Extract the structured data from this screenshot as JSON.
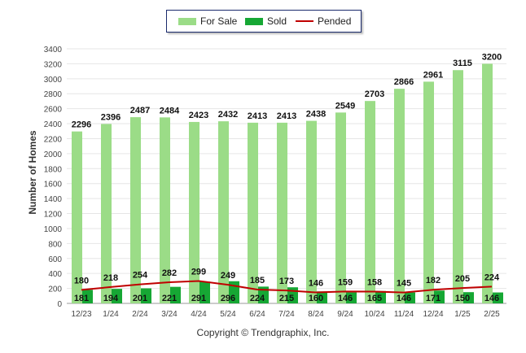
{
  "chart_data": {
    "type": "bar",
    "categories": [
      "12/23",
      "1/24",
      "2/24",
      "3/24",
      "4/24",
      "5/24",
      "6/24",
      "7/24",
      "8/24",
      "9/24",
      "10/24",
      "11/24",
      "12/24",
      "1/25",
      "2/25"
    ],
    "series": [
      {
        "name": "For Sale",
        "type": "bar",
        "color": "#9bdc87",
        "values": [
          2296,
          2396,
          2487,
          2484,
          2423,
          2432,
          2413,
          2413,
          2438,
          2549,
          2703,
          2866,
          2961,
          3115,
          3200
        ]
      },
      {
        "name": "Sold",
        "type": "bar",
        "color": "#16a734",
        "values": [
          181,
          194,
          201,
          221,
          291,
          296,
          224,
          215,
          160,
          146,
          165,
          146,
          171,
          150,
          146
        ]
      },
      {
        "name": "Pended",
        "type": "line",
        "color": "#c00000",
        "values": [
          180,
          218,
          254,
          282,
          299,
          249,
          185,
          173,
          146,
          159,
          158,
          145,
          182,
          205,
          224
        ]
      }
    ],
    "ylabel": "Number of Homes",
    "xlabel": "",
    "ylim": [
      0,
      3400
    ],
    "yticks": [
      0,
      200,
      400,
      600,
      800,
      1000,
      1200,
      1400,
      1600,
      1800,
      2000,
      2200,
      2400,
      2600,
      2800,
      3000,
      3200,
      3400
    ],
    "grid": true,
    "legend_position": "top-center"
  },
  "footer": "Copyright © Trendgraphix, Inc."
}
